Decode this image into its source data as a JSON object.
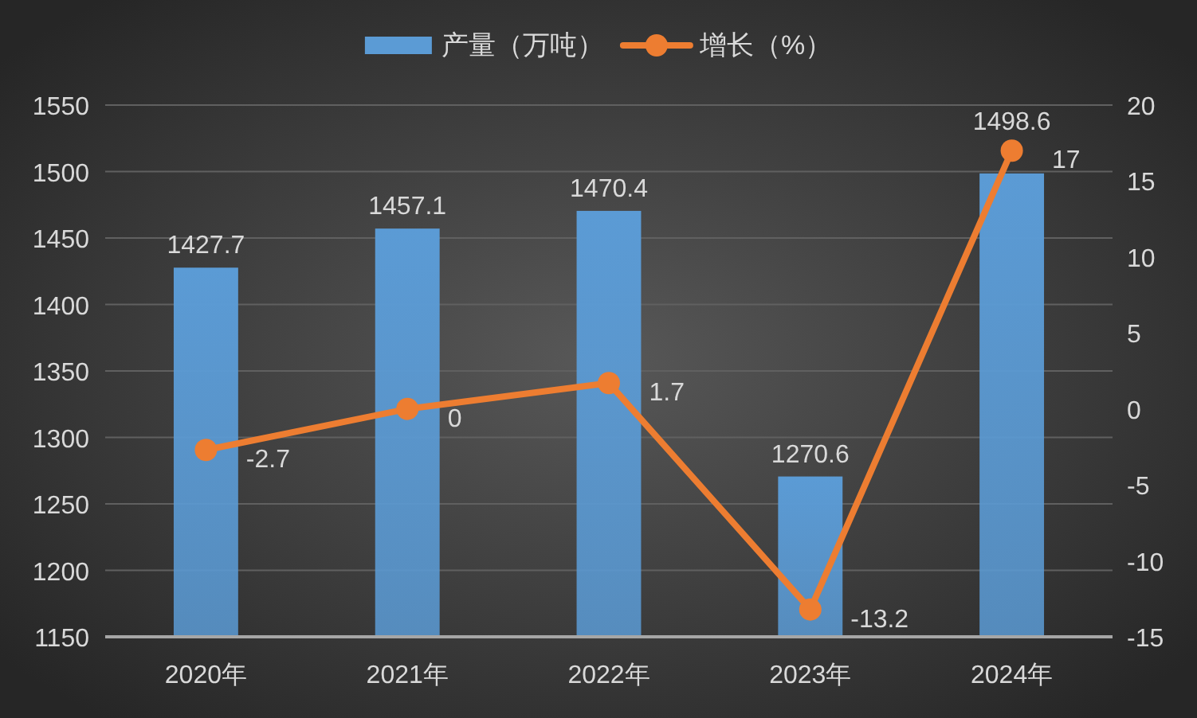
{
  "chart_data": {
    "type": "bar",
    "categories": [
      "2020年",
      "2021年",
      "2022年",
      "2023年",
      "2024年"
    ],
    "series": [
      {
        "name": "产量（万吨）",
        "color": "#5b9bd5",
        "values": [
          1427.7,
          1457.1,
          1470.4,
          1270.6,
          1498.6
        ]
      },
      {
        "name": "增长（%）",
        "type": "line",
        "axis": "y2",
        "color": "#ed7d31",
        "marker": "circle",
        "values": [
          -2.7,
          0,
          1.7,
          -13.2,
          17
        ]
      }
    ],
    "ylim": [
      1150,
      1550
    ],
    "yticks": [
      1150,
      1200,
      1250,
      1300,
      1350,
      1400,
      1450,
      1500,
      1550
    ],
    "y2lim": [
      -15,
      20
    ],
    "y2ticks": [
      -15,
      -10,
      -5,
      0,
      5,
      10,
      15,
      20
    ],
    "grid": "y",
    "legend": "top",
    "data_labels": true
  }
}
